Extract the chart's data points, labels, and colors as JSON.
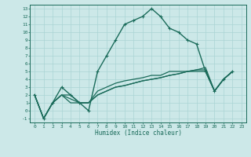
{
  "xlabel": "Humidex (Indice chaleur)",
  "xlim": [
    -0.5,
    23.5
  ],
  "ylim": [
    -1.5,
    13.5
  ],
  "xticks": [
    0,
    1,
    2,
    3,
    4,
    5,
    6,
    7,
    8,
    9,
    10,
    11,
    12,
    13,
    14,
    15,
    16,
    17,
    18,
    19,
    20,
    21,
    22,
    23
  ],
  "yticks": [
    -1,
    0,
    1,
    2,
    3,
    4,
    5,
    6,
    7,
    8,
    9,
    10,
    11,
    12,
    13
  ],
  "bg_color": "#cce8e8",
  "line_color": "#1a6b5a",
  "grid_color": "#aad4d4",
  "lines": [
    {
      "x": [
        0,
        1,
        2,
        3,
        4,
        5,
        6,
        7,
        8,
        9,
        10,
        11,
        12,
        13,
        14,
        15,
        16,
        17,
        18,
        19,
        20,
        21,
        22
      ],
      "y": [
        2,
        -1,
        1,
        3,
        2,
        1,
        0,
        5,
        7,
        9,
        11,
        11.5,
        12,
        13,
        12,
        10.5,
        10,
        9,
        8.5,
        5,
        2.5,
        4,
        5
      ],
      "marker": true,
      "lw": 1.0
    },
    {
      "x": [
        0,
        1,
        2,
        3,
        4,
        5,
        6,
        7,
        8,
        9,
        10,
        11,
        12,
        13,
        14,
        15,
        16,
        17,
        18,
        19,
        20,
        21,
        22
      ],
      "y": [
        2,
        -1,
        1,
        2,
        1,
        1,
        1,
        2,
        2.5,
        3,
        3.2,
        3.5,
        3.8,
        4,
        4.2,
        4.5,
        4.7,
        5,
        5,
        5,
        2.5,
        4,
        5
      ],
      "marker": false,
      "lw": 0.9
    },
    {
      "x": [
        0,
        1,
        2,
        3,
        4,
        5,
        6,
        7,
        8,
        9,
        10,
        11,
        12,
        13,
        14,
        15,
        16,
        17,
        18,
        19,
        20,
        21,
        22
      ],
      "y": [
        2,
        -1,
        1,
        2,
        1.5,
        1,
        1,
        2,
        2.5,
        3,
        3.2,
        3.5,
        3.8,
        4,
        4.2,
        4.5,
        4.7,
        5,
        5.2,
        5.2,
        2.5,
        4,
        5
      ],
      "marker": false,
      "lw": 0.9
    },
    {
      "x": [
        0,
        1,
        2,
        3,
        4,
        5,
        6,
        7,
        8,
        9,
        10,
        11,
        12,
        13,
        14,
        15,
        16,
        17,
        18,
        19,
        20,
        21,
        22
      ],
      "y": [
        2,
        -1,
        1,
        2,
        2,
        1,
        1,
        2.5,
        3,
        3.5,
        3.8,
        4,
        4.2,
        4.5,
        4.5,
        5,
        5,
        5,
        5.2,
        5.5,
        2.5,
        4,
        5
      ],
      "marker": false,
      "lw": 0.9
    }
  ]
}
